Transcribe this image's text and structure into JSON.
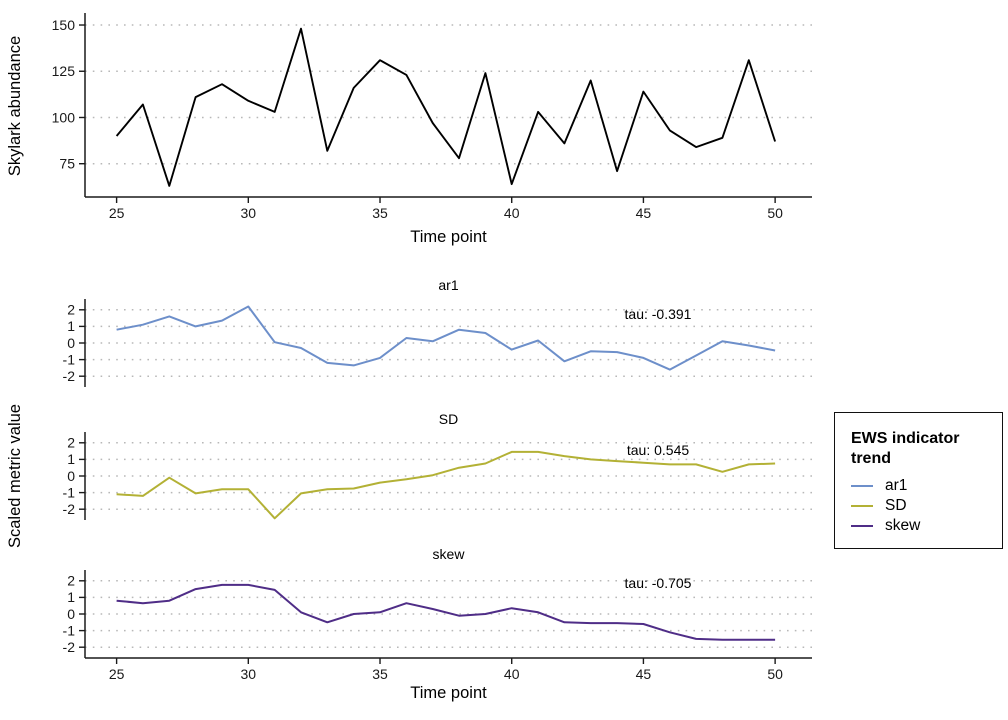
{
  "page": {
    "background": "#ffffff"
  },
  "style": {
    "grid_color": "#b8b8b8",
    "axis_color": "#1a1a1a",
    "tick_text_color": "#191919",
    "abundance_line_color": "#000000"
  },
  "labels": {
    "top_ylabel": "Skylark abundance",
    "top_xlabel": "Time point",
    "facet_ylabel": "Scaled metric value",
    "bottom_xlabel": "Time point"
  },
  "legend": {
    "title": "EWS indicator trend",
    "position": "right",
    "items": [
      {
        "label": "ar1",
        "color": "#6d8fca"
      },
      {
        "label": "SD",
        "color": "#b3b135"
      },
      {
        "label": "skew",
        "color": "#4f2d87"
      }
    ]
  },
  "chart_data": [
    {
      "type": "line",
      "panel": "abundance",
      "title": "",
      "xlabel": "Time point",
      "ylabel": "Skylark abundance",
      "line_color": "#000000",
      "grid": "horizontal-dotted",
      "x": [
        25,
        26,
        27,
        28,
        29,
        30,
        31,
        32,
        33,
        34,
        35,
        36,
        37,
        38,
        39,
        40,
        41,
        42,
        43,
        44,
        45,
        46,
        47,
        48,
        49,
        50
      ],
      "values": [
        90,
        107,
        63,
        111,
        118,
        109,
        103,
        148,
        82,
        116,
        131,
        123,
        97,
        78,
        124,
        64,
        103,
        86,
        120,
        71,
        114,
        93,
        84,
        89,
        131,
        87
      ],
      "xticks": [
        25,
        30,
        35,
        40,
        45,
        50
      ],
      "yticks": [
        75,
        100,
        125,
        150
      ],
      "xlim": [
        23.8,
        51.4
      ],
      "ylim": [
        57,
        156.5
      ]
    },
    {
      "type": "line",
      "panel": "ar1",
      "facet": "ar1",
      "tau": -0.391,
      "annotation": "tau: -0.391",
      "xlabel": "Time point",
      "ylabel": "Scaled metric value",
      "line_color": "#6d8fca",
      "grid": "horizontal-dotted",
      "x": [
        25,
        26,
        27,
        28,
        29,
        30,
        31,
        32,
        33,
        34,
        35,
        36,
        37,
        38,
        39,
        40,
        41,
        42,
        43,
        44,
        45,
        46,
        47,
        48,
        49,
        50
      ],
      "values": [
        0.8,
        1.1,
        1.6,
        1.0,
        1.35,
        2.2,
        0.05,
        -0.3,
        -1.2,
        -1.35,
        -0.9,
        0.3,
        0.1,
        0.8,
        0.6,
        -0.4,
        0.15,
        -1.1,
        -0.5,
        -0.55,
        -0.9,
        -1.6,
        -0.75,
        0.1,
        -0.15,
        -0.45
      ],
      "xticks": [
        25,
        30,
        35,
        40,
        45,
        50
      ],
      "yticks": [
        2,
        1,
        0,
        -1,
        -2
      ],
      "xlim": [
        23.8,
        51.4
      ],
      "ylim": [
        -2.65,
        2.65
      ]
    },
    {
      "type": "line",
      "panel": "SD",
      "facet": "SD",
      "tau": 0.545,
      "annotation": "tau: 0.545",
      "xlabel": "Time point",
      "ylabel": "Scaled metric value",
      "line_color": "#b3b135",
      "grid": "horizontal-dotted",
      "x": [
        25,
        26,
        27,
        28,
        29,
        30,
        31,
        32,
        33,
        34,
        35,
        36,
        37,
        38,
        39,
        40,
        41,
        42,
        43,
        44,
        45,
        46,
        47,
        48,
        49,
        50
      ],
      "values": [
        -1.1,
        -1.2,
        -0.1,
        -1.05,
        -0.8,
        -0.8,
        -2.55,
        -1.05,
        -0.8,
        -0.75,
        -0.4,
        -0.2,
        0.05,
        0.5,
        0.75,
        1.45,
        1.45,
        1.2,
        1.0,
        0.9,
        0.8,
        0.7,
        0.7,
        0.25,
        0.7,
        0.75
      ],
      "xticks": [
        25,
        30,
        35,
        40,
        45,
        50
      ],
      "yticks": [
        2,
        1,
        0,
        -1,
        -2
      ],
      "xlim": [
        23.8,
        51.4
      ],
      "ylim": [
        -2.65,
        2.65
      ]
    },
    {
      "type": "line",
      "panel": "skew",
      "facet": "skew",
      "tau": -0.705,
      "annotation": "tau: -0.705",
      "xlabel": "Time point",
      "ylabel": "Scaled metric value",
      "line_color": "#4f2d87",
      "grid": "horizontal-dotted",
      "x": [
        25,
        26,
        27,
        28,
        29,
        30,
        31,
        32,
        33,
        34,
        35,
        36,
        37,
        38,
        39,
        40,
        41,
        42,
        43,
        44,
        45,
        46,
        47,
        48,
        49,
        50
      ],
      "values": [
        0.8,
        0.65,
        0.8,
        1.5,
        1.75,
        1.75,
        1.45,
        0.1,
        -0.5,
        0.0,
        0.1,
        0.65,
        0.3,
        -0.1,
        0.0,
        0.35,
        0.1,
        -0.5,
        -0.55,
        -0.55,
        -0.6,
        -1.1,
        -1.5,
        -1.55,
        -1.55,
        -1.55
      ],
      "xticks": [
        25,
        30,
        35,
        40,
        45,
        50
      ],
      "yticks": [
        2,
        1,
        0,
        -1,
        -2
      ],
      "xlim": [
        23.8,
        51.4
      ],
      "ylim": [
        -2.65,
        2.65
      ]
    }
  ]
}
